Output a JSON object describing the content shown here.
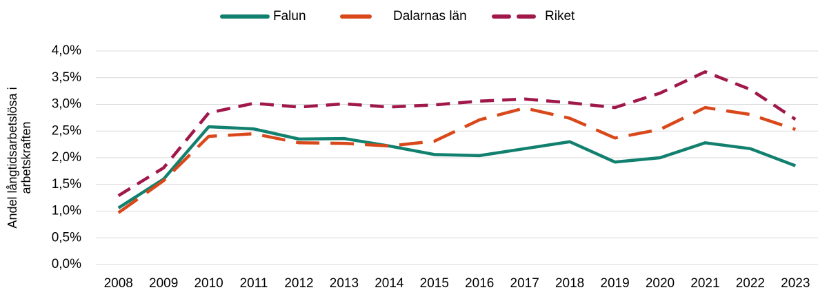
{
  "chart_data": {
    "type": "line",
    "ylabel": [
      "Andel långtidsarbetslösa i",
      "arbetskraften"
    ],
    "categories": [
      "2008",
      "2009",
      "2010",
      "2011",
      "2012",
      "2013",
      "2014",
      "2015",
      "2016",
      "2017",
      "2018",
      "2019",
      "2020",
      "2021",
      "2022",
      "2023"
    ],
    "series": [
      {
        "name": "Falun",
        "color": "#12806e",
        "dash": "solid",
        "values": [
          1.06,
          1.6,
          2.58,
          2.54,
          2.35,
          2.36,
          2.22,
          2.06,
          2.04,
          2.17,
          2.3,
          1.92,
          2.0,
          2.28,
          2.17,
          1.85
        ]
      },
      {
        "name": "Dalarnas län",
        "color": "#d9481a",
        "dash": "long-dash",
        "values": [
          0.97,
          1.57,
          2.4,
          2.45,
          2.28,
          2.27,
          2.22,
          2.31,
          2.71,
          2.93,
          2.74,
          2.37,
          2.53,
          2.94,
          2.81,
          2.53
        ]
      },
      {
        "name": "Riket",
        "color": "#a0174a",
        "dash": "dash",
        "values": [
          1.29,
          1.81,
          2.84,
          3.02,
          2.95,
          3.01,
          2.95,
          2.99,
          3.06,
          3.1,
          3.03,
          2.94,
          3.21,
          3.61,
          3.28,
          2.72
        ]
      }
    ],
    "ylim": [
      0,
      4
    ],
    "yticks": [
      {
        "value": 0,
        "label": "0,0%"
      },
      {
        "value": 0.5,
        "label": "0,5%"
      },
      {
        "value": 1,
        "label": "1,0%"
      },
      {
        "value": 1.5,
        "label": "1,5%"
      },
      {
        "value": 2,
        "label": "2,0%"
      },
      {
        "value": 2.5,
        "label": "2,5%"
      },
      {
        "value": 3,
        "label": "3,0%"
      },
      {
        "value": 3.5,
        "label": "3,5%"
      },
      {
        "value": 4,
        "label": "4,0%"
      }
    ],
    "grid": true,
    "legend": "top"
  }
}
